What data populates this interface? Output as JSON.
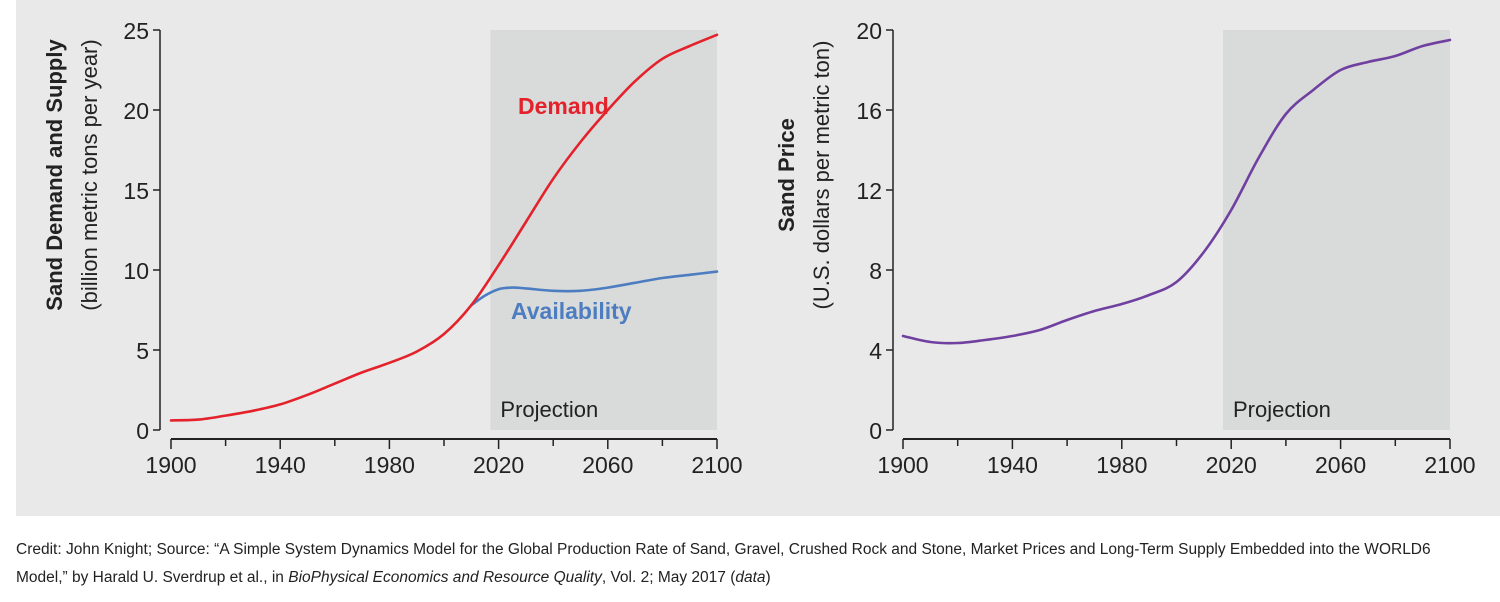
{
  "chart_data": [
    {
      "type": "line",
      "ylabel": "Sand Demand and Supply",
      "ylabel_sub": "(billion metric tons per year)",
      "xlim": [
        1900,
        2100
      ],
      "ylim": [
        0,
        25
      ],
      "xticks": [
        1900,
        1940,
        1980,
        2020,
        2060,
        2100
      ],
      "yticks": [
        0,
        5,
        10,
        15,
        20,
        25
      ],
      "shaded_region": {
        "label": "Projection",
        "from": 2017,
        "to": 2100,
        "color": "#d9dada"
      },
      "grid": false,
      "series": [
        {
          "name": "Demand",
          "color": "#e3222b",
          "x": [
            1900,
            1910,
            1920,
            1930,
            1940,
            1950,
            1960,
            1970,
            1980,
            1990,
            2000,
            2010,
            2020,
            2030,
            2040,
            2050,
            2060,
            2070,
            2080,
            2090,
            2100
          ],
          "y": [
            0.6,
            0.65,
            0.9,
            1.2,
            1.6,
            2.2,
            2.9,
            3.6,
            4.2,
            4.9,
            6.0,
            7.8,
            10.3,
            13.0,
            15.7,
            18.0,
            20.0,
            21.8,
            23.2,
            24.0,
            24.7
          ]
        },
        {
          "name": "Availability",
          "color": "#4d7dc1",
          "x": [
            2010,
            2015,
            2020,
            2025,
            2030,
            2040,
            2050,
            2060,
            2070,
            2080,
            2090,
            2100
          ],
          "y": [
            7.8,
            8.4,
            8.8,
            8.9,
            8.85,
            8.7,
            8.7,
            8.9,
            9.2,
            9.5,
            9.7,
            9.9
          ]
        }
      ]
    },
    {
      "type": "line",
      "ylabel": "Sand Price",
      "ylabel_sub": "(U.S. dollars per metric ton)",
      "xlim": [
        1900,
        2100
      ],
      "ylim": [
        0,
        20
      ],
      "xticks": [
        1900,
        1940,
        1980,
        2020,
        2060,
        2100
      ],
      "yticks": [
        0,
        4,
        8,
        12,
        16,
        20
      ],
      "shaded_region": {
        "label": "Projection",
        "from": 2017,
        "to": 2100,
        "color": "#d9dada"
      },
      "grid": false,
      "series": [
        {
          "color": "#7040a0",
          "x": [
            1900,
            1910,
            1920,
            1930,
            1940,
            1950,
            1960,
            1970,
            1980,
            1990,
            2000,
            2010,
            2020,
            2030,
            2040,
            2050,
            2060,
            2070,
            2080,
            2090,
            2100
          ],
          "y": [
            4.7,
            4.4,
            4.35,
            4.5,
            4.7,
            5.0,
            5.5,
            5.95,
            6.3,
            6.75,
            7.4,
            8.9,
            11.0,
            13.6,
            15.8,
            17.0,
            18.0,
            18.4,
            18.7,
            19.2,
            19.5
          ]
        }
      ]
    }
  ],
  "caption": {
    "prefix": "Credit: John Knight; Source: “A Simple System Dynamics Model for the Global Production Rate of Sand, Gravel, Crushed Rock and Stone, Market Prices and Long-Term Supply Embedded into the WORLD6 Model,” by Harald U. Sverdrup et al., in ",
    "journal": "BioPhysical Economics and Resource Quality",
    "suffix": ", Vol. 2; May 2017 (",
    "link": "data",
    "end": ")"
  }
}
